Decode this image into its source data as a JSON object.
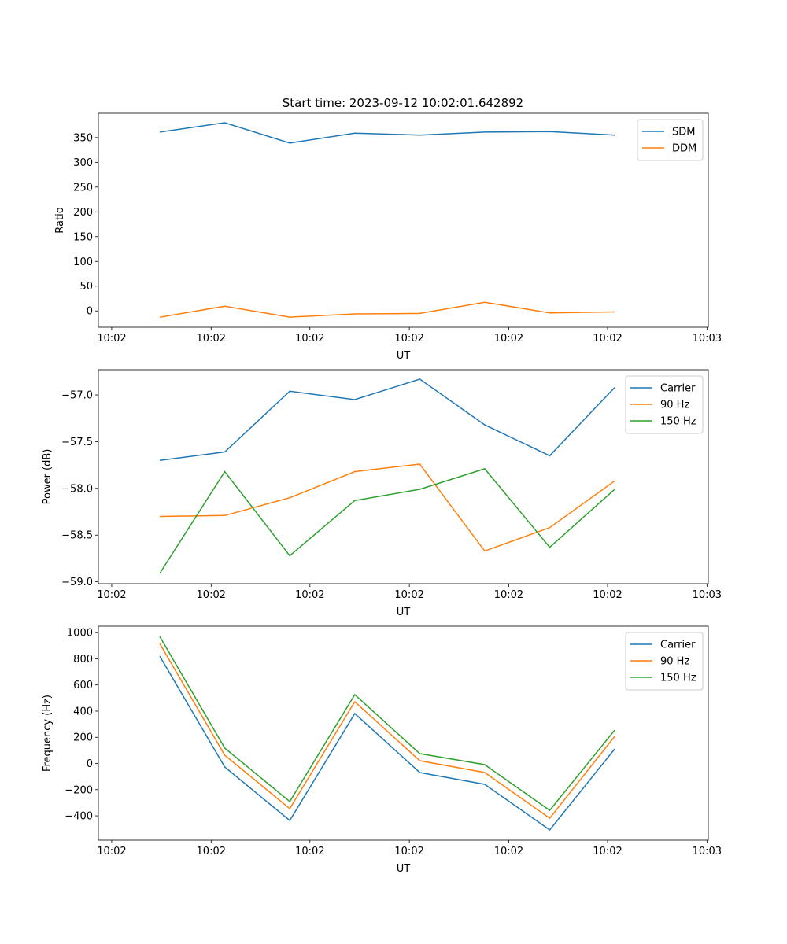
{
  "title": "Start time: 2023-09-12 10:02:01.642892",
  "chart_data": [
    {
      "type": "line",
      "xlabel": "UT",
      "ylabel": "Ratio",
      "x": [
        0,
        1,
        2,
        3,
        4,
        5,
        6,
        7
      ],
      "xlim": [
        -0.945,
        8.44
      ],
      "xticks": [
        -0.74,
        0.79,
        2.31,
        3.84,
        5.37,
        6.89,
        8.42
      ],
      "xticklabels": [
        "10:02",
        "10:02",
        "10:02",
        "10:02",
        "10:02",
        "10:02",
        "10:03"
      ],
      "ylim": [
        -33,
        399
      ],
      "yticks": [
        0,
        50,
        100,
        150,
        200,
        250,
        300,
        350
      ],
      "yticklabels": [
        "0",
        "50",
        "100",
        "150",
        "200",
        "250",
        "300",
        "350"
      ],
      "legend": "top-right",
      "series": [
        {
          "name": "SDM",
          "color": "#1f77b4",
          "values": [
            361,
            380,
            339,
            359,
            355,
            361,
            362,
            355
          ]
        },
        {
          "name": "DDM",
          "color": "#ff7f0e",
          "values": [
            -12.7,
            9.5,
            -12.5,
            -6,
            -5,
            17.5,
            -4,
            -2
          ]
        }
      ]
    },
    {
      "type": "line",
      "xlabel": "UT",
      "ylabel": "Power (dB)",
      "x": [
        0,
        1,
        2,
        3,
        4,
        5,
        6,
        7
      ],
      "xlim": [
        -0.945,
        8.44
      ],
      "xticks": [
        -0.74,
        0.79,
        2.31,
        3.84,
        5.37,
        6.89,
        8.42
      ],
      "xticklabels": [
        "10:02",
        "10:02",
        "10:02",
        "10:02",
        "10:02",
        "10:02",
        "10:03"
      ],
      "ylim": [
        -59.02,
        -56.73
      ],
      "yticks": [
        -59.0,
        -58.5,
        -58.0,
        -57.5,
        -57.0
      ],
      "yticklabels": [
        "−59.0",
        "−58.5",
        "−58.0",
        "−57.5",
        "−57.0"
      ],
      "legend": "top-right",
      "series": [
        {
          "name": "Carrier",
          "color": "#1f77b4",
          "values": [
            -57.7,
            -57.61,
            -56.96,
            -57.05,
            -56.83,
            -57.32,
            -57.65,
            -56.92
          ]
        },
        {
          "name": "90 Hz",
          "color": "#ff7f0e",
          "values": [
            -58.3,
            -58.29,
            -58.1,
            -57.82,
            -57.74,
            -58.67,
            -58.42,
            -57.92
          ]
        },
        {
          "name": "150 Hz",
          "color": "#2ca02c",
          "values": [
            -58.91,
            -57.82,
            -58.72,
            -58.13,
            -58.01,
            -57.79,
            -58.63,
            -58.01
          ]
        }
      ]
    },
    {
      "type": "line",
      "xlabel": "UT",
      "ylabel": "Frequency (Hz)",
      "x": [
        0,
        1,
        2,
        3,
        4,
        5,
        6,
        7
      ],
      "xlim": [
        -0.945,
        8.44
      ],
      "xticks": [
        -0.74,
        0.79,
        2.31,
        3.84,
        5.37,
        6.89,
        8.42
      ],
      "xticklabels": [
        "10:02",
        "10:02",
        "10:02",
        "10:02",
        "10:02",
        "10:02",
        "10:03"
      ],
      "ylim": [
        -586,
        1049
      ],
      "yticks": [
        -400,
        -200,
        0,
        200,
        400,
        600,
        800,
        1000
      ],
      "yticklabels": [
        "−400",
        "−200",
        "0",
        "200",
        "400",
        "600",
        "800",
        "1000"
      ],
      "legend": "top-right",
      "series": [
        {
          "name": "Carrier",
          "color": "#1f77b4",
          "values": [
            820,
            -27,
            -436,
            381,
            -69,
            -159,
            -508,
            111
          ]
        },
        {
          "name": "90 Hz",
          "color": "#ff7f0e",
          "values": [
            916,
            63,
            -345,
            472,
            21,
            -69,
            -418,
            207
          ]
        },
        {
          "name": "150 Hz",
          "color": "#2ca02c",
          "values": [
            970,
            117,
            -291,
            526,
            75,
            -9,
            -358,
            255
          ]
        }
      ]
    }
  ]
}
